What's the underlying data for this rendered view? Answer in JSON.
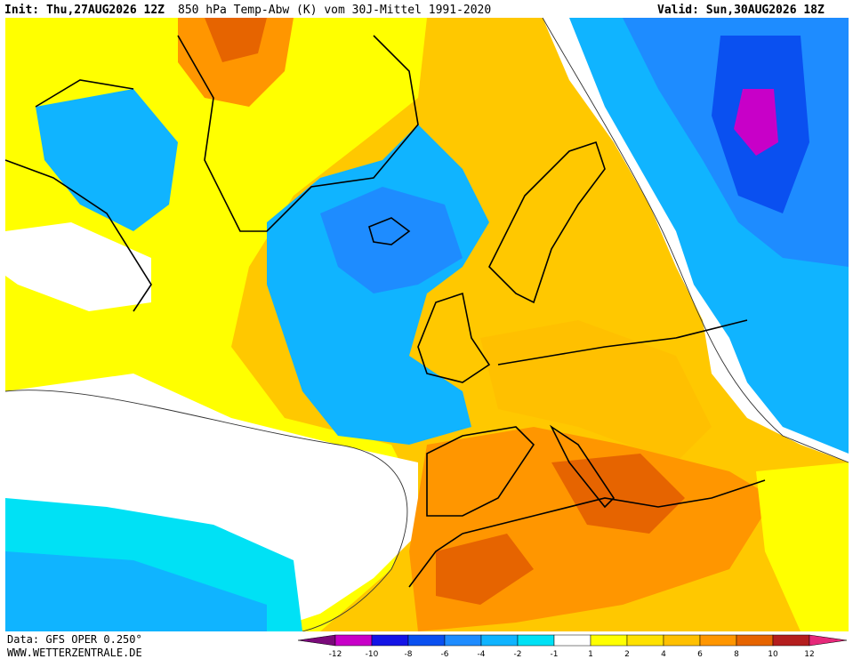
{
  "header": {
    "init": "Init: Thu,27AUG2026 12Z",
    "title": "850 hPa Temp-Abw (K) vom 30J-Mittel 1991-2020",
    "valid": "Valid: Sun,30AUG2026 18Z"
  },
  "footer": {
    "source": "Data: GFS OPER 0.250°",
    "website": "WWW.WETTERZENTRALE.DE"
  },
  "colorbar": {
    "labels": [
      -12,
      -10,
      -8,
      -6,
      -4,
      -2,
      -1,
      1,
      2,
      4,
      6,
      8,
      10,
      12
    ],
    "colors": [
      "#7a0a7a",
      "#c800c8",
      "#1414e6",
      "#0a50f0",
      "#1e8cff",
      "#10b4ff",
      "#00e1f5",
      "#ffffff",
      "#ffff00",
      "#ffe100",
      "#ffc000",
      "#ff9600",
      "#e66400",
      "#b41e1e",
      "#e6287a"
    ]
  }
}
